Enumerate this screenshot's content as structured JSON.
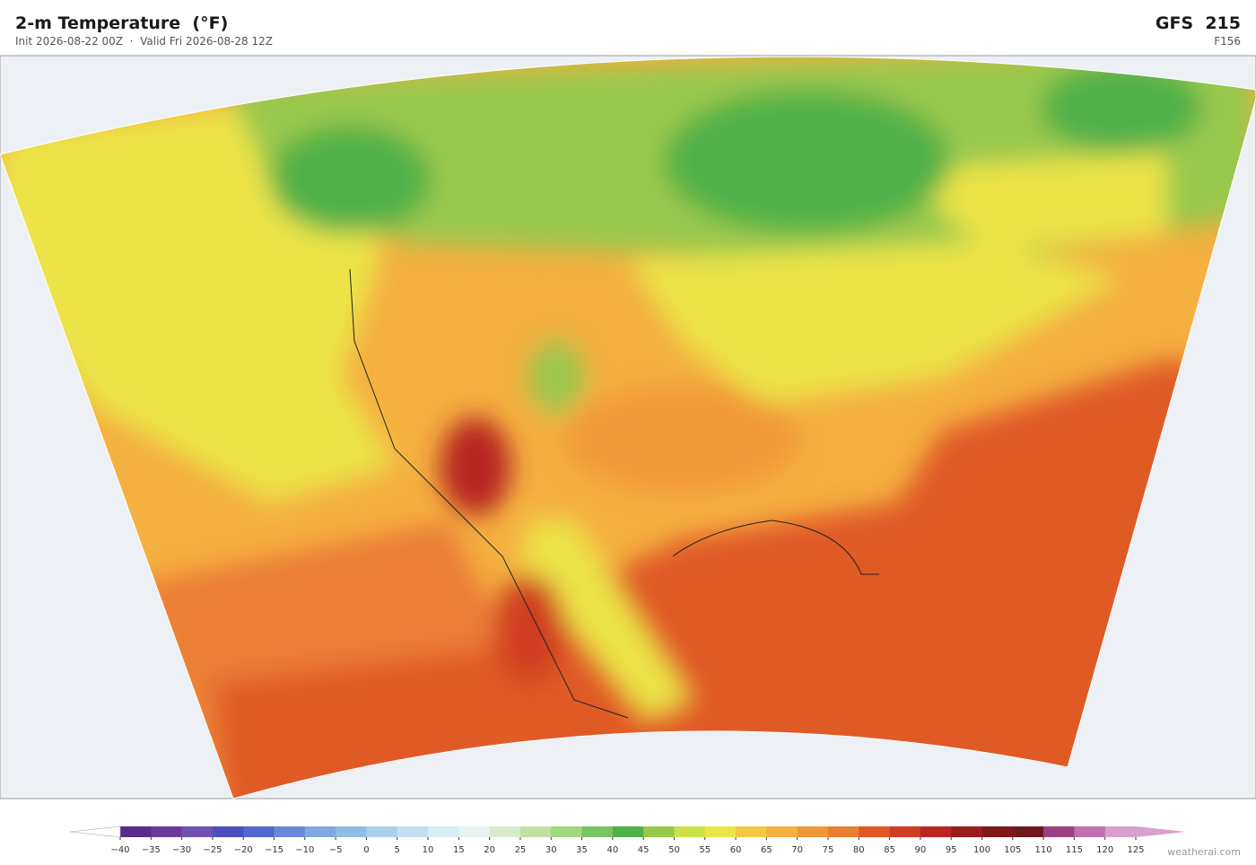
{
  "header": {
    "title": "2-m Temperature  (°F)",
    "subtitle": "Init 2026-08-22 00Z  ·  Valid Fri 2026-08-28 12Z",
    "model": "GFS  215",
    "forecast_hour": "F156"
  },
  "colorbar": {
    "ticks": [
      {
        "value": -40,
        "label": "−40"
      },
      {
        "value": -35,
        "label": "−35"
      },
      {
        "value": -30,
        "label": "−30"
      },
      {
        "value": -25,
        "label": "−25"
      },
      {
        "value": -20,
        "label": "−20"
      },
      {
        "value": -15,
        "label": "−15"
      },
      {
        "value": -10,
        "label": "−10"
      },
      {
        "value": -5,
        "label": "−5"
      },
      0,
      5,
      10,
      15,
      20,
      25,
      30,
      35,
      40,
      45,
      50,
      55,
      60,
      65,
      70,
      75,
      80,
      85,
      90,
      95,
      100,
      105,
      110,
      115,
      120,
      125
    ],
    "colors": [
      "#5b2a8c",
      "#6a3a9e",
      "#7050b0",
      "#4a4fc0",
      "#5068d0",
      "#6a88d8",
      "#80a8e0",
      "#90bde4",
      "#a8d0ea",
      "#c0e0f0",
      "#d8eef4",
      "#e8f4ee",
      "#d8eccc",
      "#bfe2a0",
      "#a0d880",
      "#78c460",
      "#50b048",
      "#98c84c",
      "#cce048",
      "#ece448",
      "#f4c840",
      "#f4b040",
      "#f09838",
      "#ec7e34",
      "#e05a28",
      "#d03c24",
      "#b82820",
      "#9c1c1c",
      "#801818",
      "#701820",
      "#9c4080",
      "#c070b0",
      "#d8a0cc"
    ],
    "under_color": "#ffffff",
    "over_color": "#d8a0cc"
  },
  "footer": {
    "watermark": "weatherai.com"
  }
}
